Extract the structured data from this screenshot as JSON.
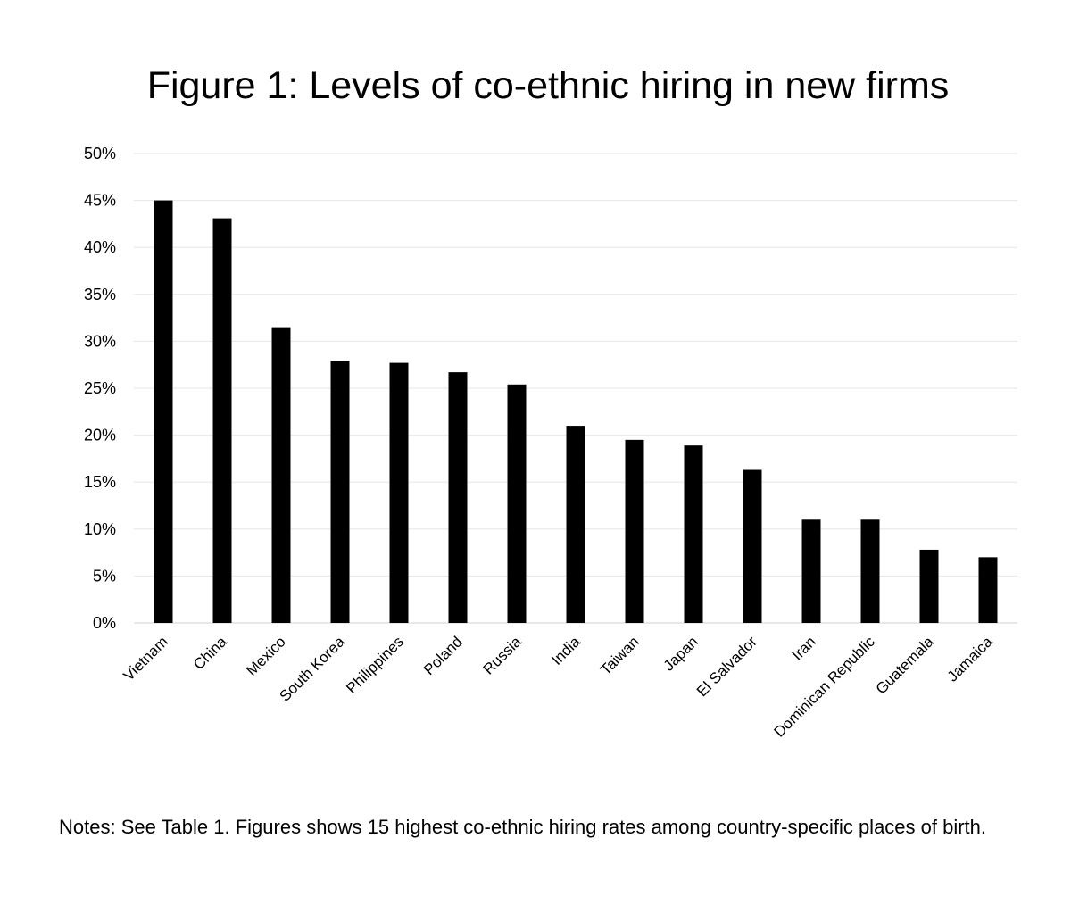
{
  "chart_data": {
    "type": "bar",
    "title": "Figure 1: Levels of co-ethnic hiring in new firms",
    "xlabel": "",
    "ylabel": "",
    "categories": [
      "Vietnam",
      "China",
      "Mexico",
      "South Korea",
      "Philippines",
      "Poland",
      "Russia",
      "India",
      "Taiwan",
      "Japan",
      "El Salvador",
      "Iran",
      "Dominican Republic",
      "Guatemala",
      "Jamaica"
    ],
    "values": [
      45.0,
      43.1,
      31.5,
      27.9,
      27.7,
      26.7,
      25.4,
      21.0,
      19.5,
      18.9,
      16.3,
      11.0,
      11.0,
      7.8,
      7.0
    ],
    "value_unit": "%",
    "ylim": [
      0,
      50
    ],
    "yticks": [
      "0%",
      "5%",
      "10%",
      "15%",
      "20%",
      "25%",
      "30%",
      "35%",
      "40%",
      "45%",
      "50%"
    ],
    "grid": true,
    "legend": "none",
    "bar_color": "#000000",
    "grid_color": "#e6e6e6"
  },
  "notes": "Notes: See Table 1. Figures shows 15 highest co-ethnic hiring rates among country-specific places of birth."
}
